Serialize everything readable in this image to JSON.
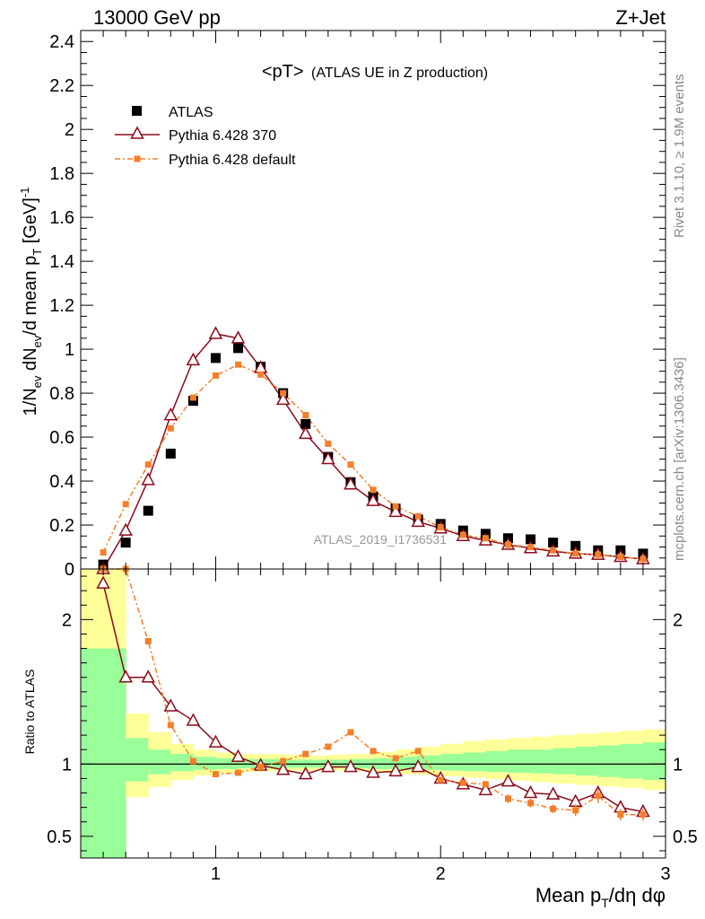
{
  "header": {
    "left": "13000 GeV pp",
    "right": "Z+Jet"
  },
  "side_labels": {
    "rivet": "Rivet 3.1.10, ≥ 1.9M events",
    "mcplots": "mcplots.cern.ch [arXiv:1306.3436]"
  },
  "colors": {
    "atlas": "#000000",
    "p370": "#8b0a1a",
    "pdef": "#f57e2a",
    "band_inner": "#99ff99",
    "band_outer": "#ffff99"
  },
  "chart_data": [
    {
      "type": "line",
      "title": "<pT> (ATLAS UE in Z production)",
      "title_parts": {
        "main": "<pT>",
        "sub": "(ATLAS UE in Z production)"
      },
      "ylabel": "1/N_ev dN_ev/d mean p_T [GeV]^-1",
      "xlim": [
        0.4,
        3.0
      ],
      "ylim": [
        0,
        2.45
      ],
      "y_ticks": [
        0,
        0.2,
        0.4,
        0.6,
        0.8,
        1,
        1.2,
        1.4,
        1.6,
        1.8,
        2,
        2.2,
        2.4
      ],
      "y_tick_labels": [
        "0",
        "0.2",
        "0.4",
        "0.6",
        "0.8",
        "1",
        "1.2",
        "1.4",
        "1.6",
        "1.8",
        "2",
        "2.2",
        "2.4"
      ],
      "legend_position": "top-left",
      "watermark": "ATLAS_2019_I1736531",
      "x": [
        0.5,
        0.6,
        0.7,
        0.8,
        0.9,
        1.0,
        1.1,
        1.2,
        1.3,
        1.4,
        1.5,
        1.6,
        1.7,
        1.8,
        1.9,
        2.0,
        2.1,
        2.2,
        2.3,
        2.4,
        2.5,
        2.6,
        2.7,
        2.8,
        2.9
      ],
      "series": [
        {
          "name": "ATLAS",
          "marker": "square",
          "values": [
            0.02,
            0.12,
            0.265,
            0.525,
            0.765,
            0.96,
            1.005,
            0.92,
            0.8,
            0.66,
            0.51,
            0.395,
            0.33,
            0.275,
            0.225,
            0.205,
            0.175,
            0.16,
            0.14,
            0.135,
            0.12,
            0.105,
            0.085,
            0.085,
            0.07
          ]
        },
        {
          "name": "Pythia 6.428 370",
          "marker": "triangle",
          "values": [
            0.0,
            0.175,
            0.405,
            0.7,
            0.95,
            1.07,
            1.05,
            0.915,
            0.77,
            0.615,
            0.5,
            0.385,
            0.31,
            0.26,
            0.215,
            0.185,
            0.15,
            0.13,
            0.11,
            0.095,
            0.08,
            0.07,
            0.065,
            0.055,
            0.045
          ]
        },
        {
          "name": "Pythia 6.428 default",
          "marker": "small-square",
          "values": [
            0.075,
            0.295,
            0.475,
            0.64,
            0.78,
            0.88,
            0.93,
            0.885,
            0.8,
            0.7,
            0.57,
            0.475,
            0.36,
            0.285,
            0.24,
            0.19,
            0.155,
            0.14,
            0.11,
            0.1,
            0.085,
            0.07,
            0.065,
            0.055,
            0.045
          ]
        }
      ]
    },
    {
      "type": "line",
      "xlabel": "Mean p_T/dη dφ",
      "ylabel": "Ratio to ATLAS",
      "xlim": [
        0.4,
        3.0
      ],
      "ylim": [
        0.35,
        2.35
      ],
      "x_ticks": [
        1,
        2,
        3
      ],
      "x_tick_labels": [
        "1",
        "2",
        "3"
      ],
      "y_tick_values": [
        0.5,
        1,
        2
      ],
      "y_tick_labels": [
        "0.5",
        "1",
        "2"
      ],
      "reference_line": 1,
      "band_edges": [
        0.4,
        0.5,
        0.6,
        0.7,
        0.8,
        0.9,
        1.0,
        1.1,
        1.2,
        1.3,
        1.4,
        1.5,
        1.6,
        1.7,
        1.8,
        1.9,
        2.0,
        2.1,
        2.2,
        2.3,
        2.4,
        2.5,
        2.6,
        2.7,
        2.8,
        2.9,
        3.0
      ],
      "band_inner_lo": [
        0.2,
        0.2,
        0.88,
        0.93,
        0.95,
        0.96,
        0.965,
        0.97,
        0.97,
        0.975,
        0.975,
        0.975,
        0.97,
        0.965,
        0.96,
        0.96,
        0.955,
        0.95,
        0.945,
        0.94,
        0.935,
        0.93,
        0.92,
        0.91,
        0.9,
        0.89
      ],
      "band_inner_hi": [
        1.8,
        1.8,
        1.18,
        1.1,
        1.07,
        1.05,
        1.04,
        1.035,
        1.035,
        1.03,
        1.03,
        1.03,
        1.035,
        1.04,
        1.05,
        1.06,
        1.07,
        1.08,
        1.09,
        1.1,
        1.1,
        1.11,
        1.12,
        1.13,
        1.14,
        1.15
      ],
      "band_outer_lo": [
        0.1,
        0.1,
        0.77,
        0.84,
        0.89,
        0.92,
        0.935,
        0.945,
        0.95,
        0.955,
        0.955,
        0.955,
        0.95,
        0.94,
        0.93,
        0.925,
        0.915,
        0.905,
        0.895,
        0.885,
        0.875,
        0.865,
        0.855,
        0.845,
        0.835,
        0.82
      ],
      "band_outer_hi": [
        2.4,
        2.4,
        1.35,
        1.22,
        1.14,
        1.1,
        1.08,
        1.07,
        1.07,
        1.065,
        1.06,
        1.065,
        1.07,
        1.085,
        1.1,
        1.12,
        1.14,
        1.16,
        1.17,
        1.18,
        1.19,
        1.2,
        1.21,
        1.22,
        1.23,
        1.24
      ],
      "x": [
        0.5,
        0.6,
        0.7,
        0.8,
        0.9,
        1.0,
        1.1,
        1.2,
        1.3,
        1.4,
        1.5,
        1.6,
        1.7,
        1.8,
        1.9,
        2.0,
        2.1,
        2.2,
        2.3,
        2.4,
        2.5,
        2.6,
        2.7,
        2.8,
        2.9
      ],
      "series": [
        {
          "name": "Pythia 6.428 370",
          "marker": "triangle",
          "values": [
            2.25,
            1.6,
            1.6,
            1.4,
            1.3,
            1.15,
            1.05,
            0.99,
            0.96,
            0.93,
            0.98,
            0.98,
            0.94,
            0.95,
            0.98,
            0.9,
            0.86,
            0.82,
            0.88,
            0.8,
            0.79,
            0.74,
            0.8,
            0.7,
            0.67
          ],
          "errors": [
            0,
            0,
            0,
            0,
            0,
            0,
            0,
            0,
            0,
            0,
            0,
            0,
            0,
            0,
            0,
            0,
            0,
            0,
            0.02,
            0.02,
            0.02,
            0.03,
            0.04,
            0.03,
            0.03
          ]
        },
        {
          "name": "Pythia 6.428 default",
          "marker": "small-square",
          "values": [
            2.35,
            2.35,
            1.85,
            1.27,
            1.02,
            0.93,
            0.94,
            0.98,
            1.02,
            1.07,
            1.12,
            1.22,
            1.09,
            1.04,
            1.09,
            0.89,
            0.87,
            0.86,
            0.76,
            0.73,
            0.69,
            0.68,
            0.78,
            0.65,
            0.65
          ],
          "errors": [
            0,
            0,
            0,
            0,
            0,
            0,
            0,
            0,
            0,
            0,
            0,
            0,
            0,
            0,
            0,
            0,
            0,
            0.02,
            0.03,
            0.03,
            0.03,
            0.04,
            0.05,
            0.04,
            0.04
          ]
        }
      ]
    }
  ]
}
